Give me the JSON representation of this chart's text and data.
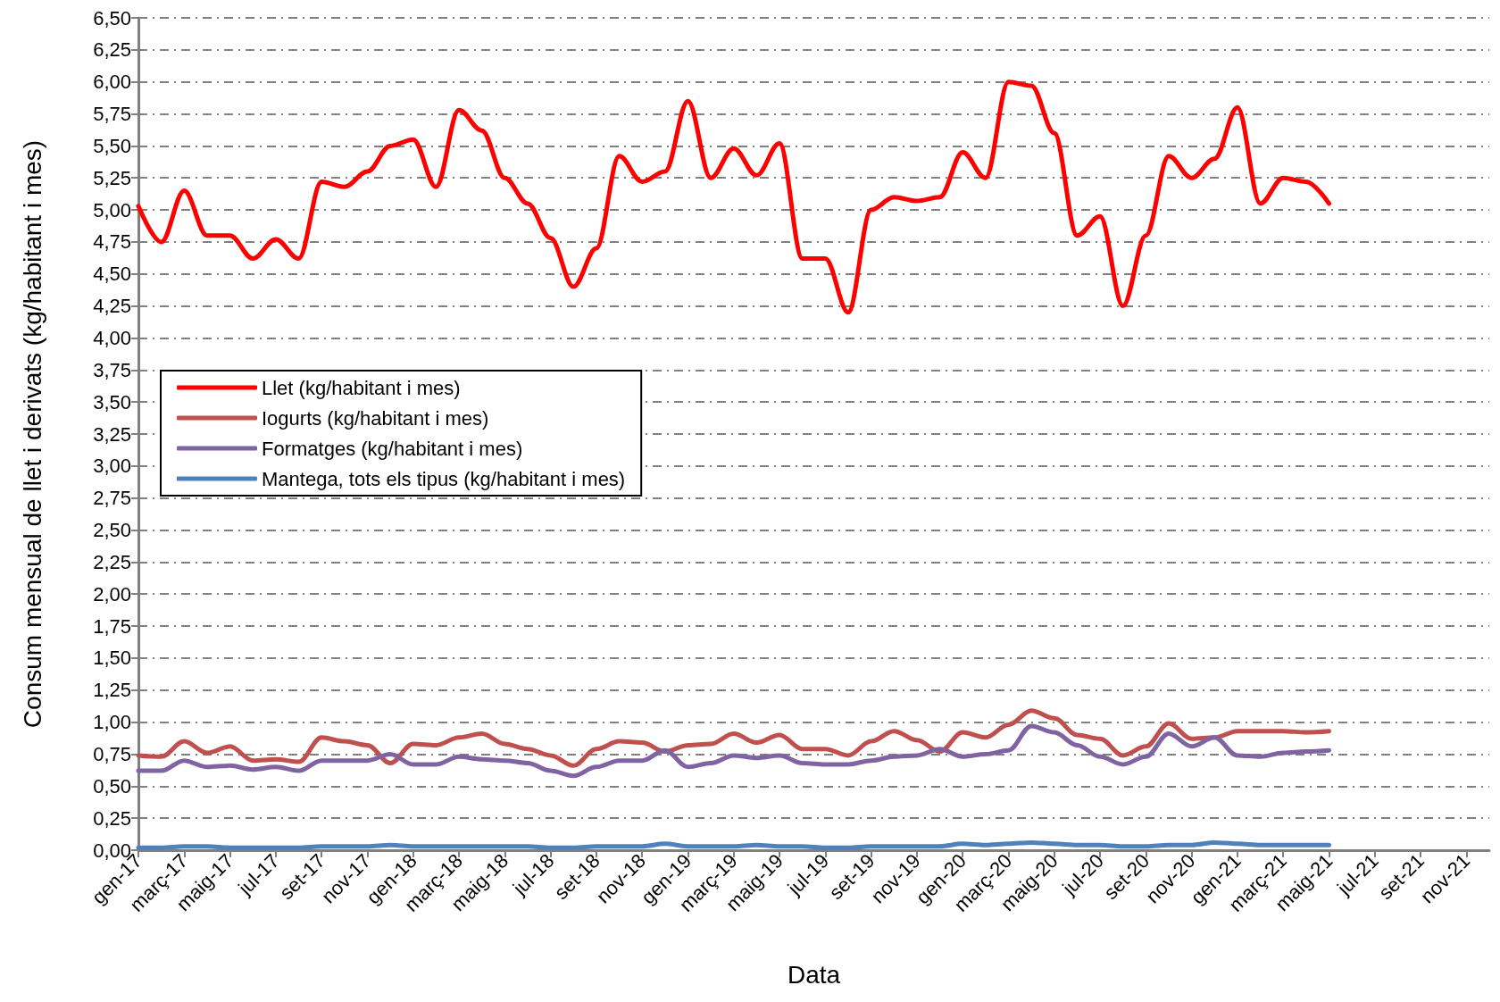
{
  "chart_data": {
    "type": "line",
    "xlabel": "Data",
    "ylabel": "Consum mensual de llet i derivats (kg/habitant i mes)",
    "x": [
      "2017-01",
      "2017-02",
      "2017-03",
      "2017-04",
      "2017-05",
      "2017-06",
      "2017-07",
      "2017-08",
      "2017-09",
      "2017-10",
      "2017-11",
      "2017-12",
      "2018-01",
      "2018-02",
      "2018-03",
      "2018-04",
      "2018-05",
      "2018-06",
      "2018-07",
      "2018-08",
      "2018-09",
      "2018-10",
      "2018-11",
      "2018-12",
      "2019-01",
      "2019-02",
      "2019-03",
      "2019-04",
      "2019-05",
      "2019-06",
      "2019-07",
      "2019-08",
      "2019-09",
      "2019-10",
      "2019-11",
      "2019-12",
      "2020-01",
      "2020-02",
      "2020-03",
      "2020-04",
      "2020-05",
      "2020-06",
      "2020-07",
      "2020-08",
      "2020-09",
      "2020-10",
      "2020-11",
      "2020-12",
      "2021-01",
      "2021-02",
      "2021-03",
      "2021-04",
      "2021-05"
    ],
    "series": [
      {
        "name": "Llet (kg/habitant i mes)",
        "color": "#ff0000",
        "values": [
          5.03,
          4.75,
          5.15,
          4.8,
          4.8,
          4.62,
          4.77,
          4.62,
          5.22,
          5.18,
          5.3,
          5.5,
          5.55,
          5.18,
          5.78,
          5.62,
          5.25,
          5.05,
          4.78,
          4.4,
          4.7,
          5.42,
          5.22,
          5.3,
          5.85,
          5.25,
          5.48,
          5.27,
          5.52,
          4.62,
          4.62,
          4.2,
          5.0,
          5.1,
          5.07,
          5.1,
          5.45,
          5.25,
          6.0,
          5.97,
          5.6,
          4.8,
          4.95,
          4.25,
          4.8,
          5.42,
          5.25,
          5.4,
          5.8,
          5.05,
          5.25,
          5.22,
          5.05
        ]
      },
      {
        "name": "Iogurts (kg/habitant i mes)",
        "color": "#c0504d",
        "values": [
          0.74,
          0.73,
          0.85,
          0.76,
          0.81,
          0.7,
          0.71,
          0.69,
          0.88,
          0.85,
          0.82,
          0.68,
          0.83,
          0.82,
          0.88,
          0.91,
          0.83,
          0.79,
          0.74,
          0.66,
          0.79,
          0.85,
          0.84,
          0.77,
          0.82,
          0.83,
          0.91,
          0.84,
          0.9,
          0.79,
          0.79,
          0.74,
          0.85,
          0.93,
          0.86,
          0.77,
          0.92,
          0.88,
          0.98,
          1.09,
          1.03,
          0.9,
          0.87,
          0.74,
          0.81,
          0.99,
          0.87,
          0.88,
          0.93,
          0.93,
          0.93,
          0.92,
          0.93
        ]
      },
      {
        "name": "Formatges (kg/habitant i mes)",
        "color": "#8064a2",
        "values": [
          0.62,
          0.62,
          0.7,
          0.65,
          0.66,
          0.63,
          0.65,
          0.62,
          0.7,
          0.7,
          0.7,
          0.75,
          0.67,
          0.67,
          0.73,
          0.71,
          0.7,
          0.68,
          0.62,
          0.58,
          0.65,
          0.7,
          0.7,
          0.78,
          0.65,
          0.68,
          0.74,
          0.72,
          0.74,
          0.68,
          0.67,
          0.67,
          0.7,
          0.73,
          0.74,
          0.79,
          0.73,
          0.75,
          0.78,
          0.97,
          0.92,
          0.82,
          0.73,
          0.67,
          0.73,
          0.91,
          0.81,
          0.88,
          0.74,
          0.73,
          0.76,
          0.77,
          0.78
        ]
      },
      {
        "name": "Mantega, tots els tipus (kg/habitant i mes)",
        "color": "#4f81bd",
        "values": [
          0.02,
          0.02,
          0.03,
          0.03,
          0.02,
          0.02,
          0.02,
          0.02,
          0.03,
          0.03,
          0.03,
          0.04,
          0.03,
          0.03,
          0.03,
          0.03,
          0.03,
          0.03,
          0.02,
          0.02,
          0.03,
          0.03,
          0.03,
          0.05,
          0.03,
          0.03,
          0.03,
          0.04,
          0.03,
          0.03,
          0.02,
          0.02,
          0.03,
          0.03,
          0.03,
          0.03,
          0.05,
          0.04,
          0.05,
          0.06,
          0.05,
          0.04,
          0.04,
          0.03,
          0.03,
          0.04,
          0.04,
          0.06,
          0.05,
          0.04,
          0.04,
          0.04,
          0.04
        ]
      }
    ],
    "xlim": [
      "2017-01",
      "2021-12"
    ],
    "xticks": [
      {
        "value": "2017-01",
        "label": "gen-17"
      },
      {
        "value": "2017-03",
        "label": "març-17"
      },
      {
        "value": "2017-05",
        "label": "maig-17"
      },
      {
        "value": "2017-07",
        "label": "jul-17"
      },
      {
        "value": "2017-09",
        "label": "set-17"
      },
      {
        "value": "2017-11",
        "label": "nov-17"
      },
      {
        "value": "2018-01",
        "label": "gen-18"
      },
      {
        "value": "2018-03",
        "label": "març-18"
      },
      {
        "value": "2018-05",
        "label": "maig-18"
      },
      {
        "value": "2018-07",
        "label": "jul-18"
      },
      {
        "value": "2018-09",
        "label": "set-18"
      },
      {
        "value": "2018-11",
        "label": "nov-18"
      },
      {
        "value": "2019-01",
        "label": "gen-19"
      },
      {
        "value": "2019-03",
        "label": "març-19"
      },
      {
        "value": "2019-05",
        "label": "maig-19"
      },
      {
        "value": "2019-07",
        "label": "jul-19"
      },
      {
        "value": "2019-09",
        "label": "set-19"
      },
      {
        "value": "2019-11",
        "label": "nov-19"
      },
      {
        "value": "2020-01",
        "label": "gen-20"
      },
      {
        "value": "2020-03",
        "label": "març-20"
      },
      {
        "value": "2020-05",
        "label": "maig-20"
      },
      {
        "value": "2020-07",
        "label": "jul-20"
      },
      {
        "value": "2020-09",
        "label": "set-20"
      },
      {
        "value": "2020-11",
        "label": "nov-20"
      },
      {
        "value": "2021-01",
        "label": "gen-21"
      },
      {
        "value": "2021-03",
        "label": "març-21"
      },
      {
        "value": "2021-05",
        "label": "maig-21"
      },
      {
        "value": "2021-07",
        "label": "jul-21"
      },
      {
        "value": "2021-09",
        "label": "set-21"
      },
      {
        "value": "2021-11",
        "label": "nov-21"
      }
    ],
    "ylim": [
      0,
      6.5
    ],
    "yticks": [
      {
        "value": 0,
        "label": "0,00"
      },
      {
        "value": 0.25,
        "label": "0,25"
      },
      {
        "value": 0.5,
        "label": "0,50"
      },
      {
        "value": 0.75,
        "label": "0,75"
      },
      {
        "value": 1,
        "label": "1,00"
      },
      {
        "value": 1.25,
        "label": "1,25"
      },
      {
        "value": 1.5,
        "label": "1,50"
      },
      {
        "value": 1.75,
        "label": "1,75"
      },
      {
        "value": 2,
        "label": "2,00"
      },
      {
        "value": 2.25,
        "label": "2,25"
      },
      {
        "value": 2.5,
        "label": "2,50"
      },
      {
        "value": 2.75,
        "label": "2,75"
      },
      {
        "value": 3,
        "label": "3,00"
      },
      {
        "value": 3.25,
        "label": "3,25"
      },
      {
        "value": 3.5,
        "label": "3,50"
      },
      {
        "value": 3.75,
        "label": "3,75"
      },
      {
        "value": 4,
        "label": "4,00"
      },
      {
        "value": 4.25,
        "label": "4,25"
      },
      {
        "value": 4.5,
        "label": "4,50"
      },
      {
        "value": 4.75,
        "label": "4,75"
      },
      {
        "value": 5,
        "label": "5,00"
      },
      {
        "value": 5.25,
        "label": "5,25"
      },
      {
        "value": 5.5,
        "label": "5,50"
      },
      {
        "value": 5.75,
        "label": "5,75"
      },
      {
        "value": 6,
        "label": "6,00"
      },
      {
        "value": 6.25,
        "label": "6,25"
      },
      {
        "value": 6.5,
        "label": "6,50"
      }
    ],
    "grid": "y",
    "legend": "left",
    "marker": "none",
    "line_style": "solid"
  }
}
